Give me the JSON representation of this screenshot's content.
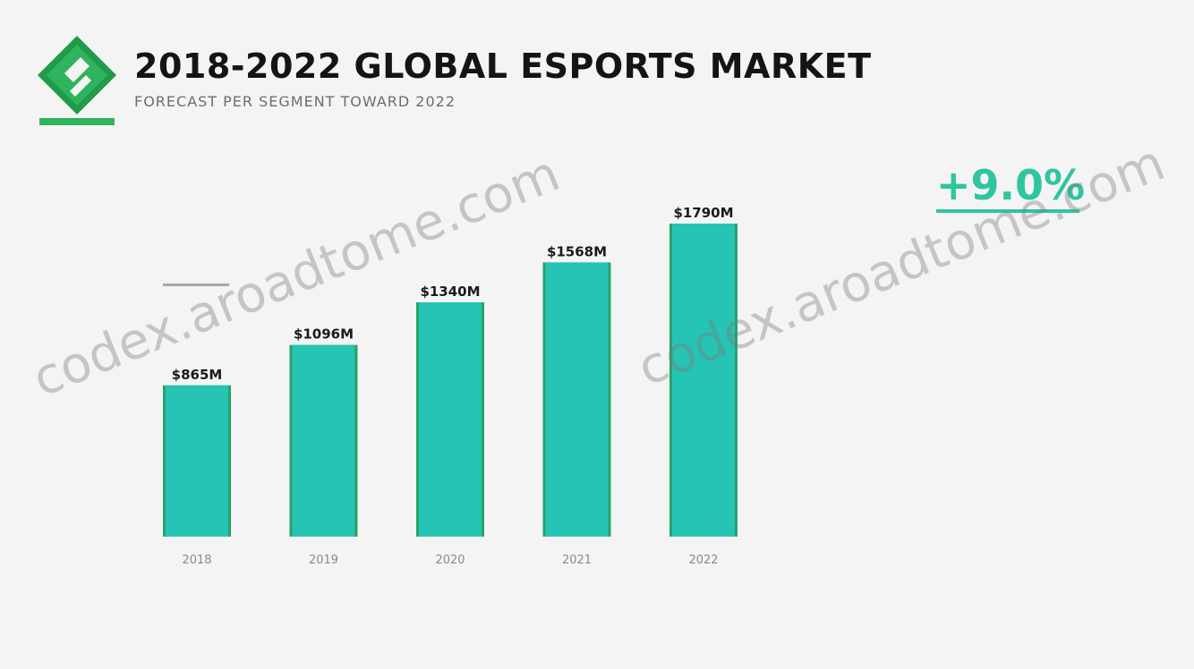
{
  "header": {
    "title": "2018-2022 GLOBAL ESPORTS MARKET",
    "subtitle": "FORECAST PER SEGMENT TOWARD 2022"
  },
  "colors": {
    "bar": "#26c4b4",
    "bar_edge": "#27a36a",
    "accent": "#2fc5a0",
    "logo_green": "#1f9b4a"
  },
  "chart_data": {
    "type": "bar",
    "title": "2018-2022 GLOBAL ESPORTS MARKET",
    "subtitle": "FORECAST PER SEGMENT TOWARD 2022",
    "categories": [
      "2018",
      "2019",
      "2020",
      "2021",
      "2022"
    ],
    "values": [
      865,
      1096,
      1340,
      1568,
      1790
    ],
    "value_labels": [
      "$865M",
      "$1096M",
      "$1340M",
      "$1568M",
      "$1790M"
    ],
    "unit": "$M",
    "ylim": [
      0,
      2000
    ],
    "grid": false,
    "xlabel": "",
    "ylabel": ""
  },
  "callout": {
    "growth": "+9.0%"
  },
  "watermark": {
    "text": "codex.aroadtome.com"
  }
}
